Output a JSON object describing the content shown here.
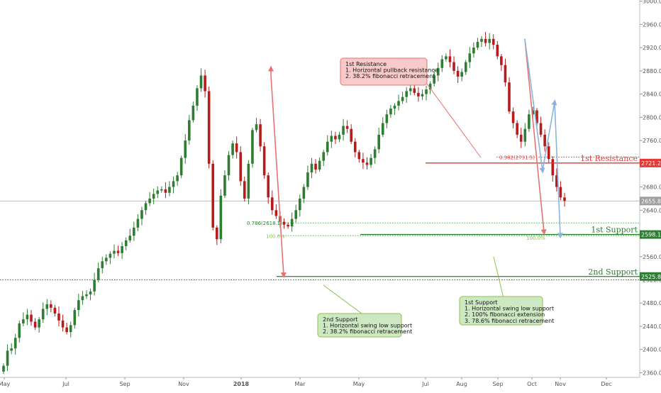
{
  "chart_data": {
    "type": "candlestick",
    "x_months": [
      "May",
      "Jul",
      "Sep",
      "Nov",
      "2018",
      "Mar",
      "May",
      "Jul",
      "Aug",
      "Sep",
      "Oct",
      "Nov",
      "Dec"
    ],
    "y_ticks": [
      "2360.0",
      "2400.0",
      "2440.0",
      "2480.0",
      "2520.0",
      "2560.0",
      "2600.0",
      "2640.0",
      "2680.0",
      "2720.0",
      "2760.0",
      "2800.0",
      "2840.0",
      "2880.0",
      "2920.0",
      "2960.0",
      "3000.0"
    ],
    "ylim": [
      2352,
      3002
    ],
    "levels": {
      "resistance": {
        "value": 2721.2,
        "label": "1st Resistance",
        "tag": "2721.2"
      },
      "support1": {
        "value": 2598.1,
        "label": "1st Support",
        "tag": "2598.1"
      },
      "support2": {
        "value": 2525.8,
        "label": "2nd Support",
        "tag": "2525.8"
      },
      "last": {
        "value": 2655.8,
        "tag": "2655.8"
      }
    },
    "fib_labels": {
      "res_382": "0.382(2731.5)",
      "sup_786": "0.786(2618.1)",
      "sup_100a": "100.0%",
      "sup_100b": "100.0%"
    },
    "close_series": [
      2372,
      2398,
      2402,
      2420,
      2445,
      2452,
      2460,
      2448,
      2438,
      2452,
      2470,
      2478,
      2472,
      2462,
      2450,
      2438,
      2430,
      2442,
      2468,
      2485,
      2492,
      2495,
      2500,
      2520,
      2540,
      2552,
      2558,
      2565,
      2570,
      2566,
      2578,
      2588,
      2596,
      2610,
      2625,
      2640,
      2652,
      2660,
      2668,
      2674,
      2676,
      2670,
      2680,
      2690,
      2700,
      2730,
      2760,
      2795,
      2820,
      2850,
      2872,
      2845,
      2720,
      2610,
      2590,
      2665,
      2700,
      2735,
      2755,
      2740,
      2690,
      2660,
      2720,
      2778,
      2788,
      2750,
      2700,
      2662,
      2640,
      2630,
      2620,
      2615,
      2612,
      2625,
      2640,
      2660,
      2680,
      2705,
      2720,
      2710,
      2725,
      2740,
      2758,
      2768,
      2762,
      2770,
      2785,
      2780,
      2758,
      2740,
      2728,
      2722,
      2718,
      2730,
      2745,
      2770,
      2790,
      2805,
      2815,
      2820,
      2828,
      2835,
      2845,
      2850,
      2842,
      2836,
      2840,
      2848,
      2858,
      2872,
      2885,
      2900,
      2905,
      2895,
      2880,
      2870,
      2878,
      2895,
      2910,
      2920,
      2930,
      2935,
      2928,
      2935,
      2925,
      2905,
      2890,
      2860,
      2810,
      2790,
      2770,
      2758,
      2780,
      2805,
      2812,
      2790,
      2770,
      2750,
      2728,
      2700,
      2680,
      2662,
      2656
    ],
    "annotations": {
      "res": [
        "1st Resistance",
        "1. Horizontal pullback resistance",
        "2. 38.2% fibonacci retracement"
      ],
      "sup2": [
        "2nd Support",
        "1. Horizontal swing low support",
        "2. 38.2% fibonacci retracement"
      ],
      "sup1": [
        "1st Support",
        "1. Horizontal swing low support",
        "2. 100% fibonacci extension",
        "3. 78.6% fibonacci retracement"
      ]
    },
    "colors": {
      "up": "#2e7d32",
      "down": "#b71c1c",
      "resistance": "#e53935",
      "support": "#2e7d32",
      "pink": "#e57373",
      "blue": "#8ab4e0",
      "res_box": "#f8caca",
      "sup_box": "#cfe8c4"
    }
  }
}
